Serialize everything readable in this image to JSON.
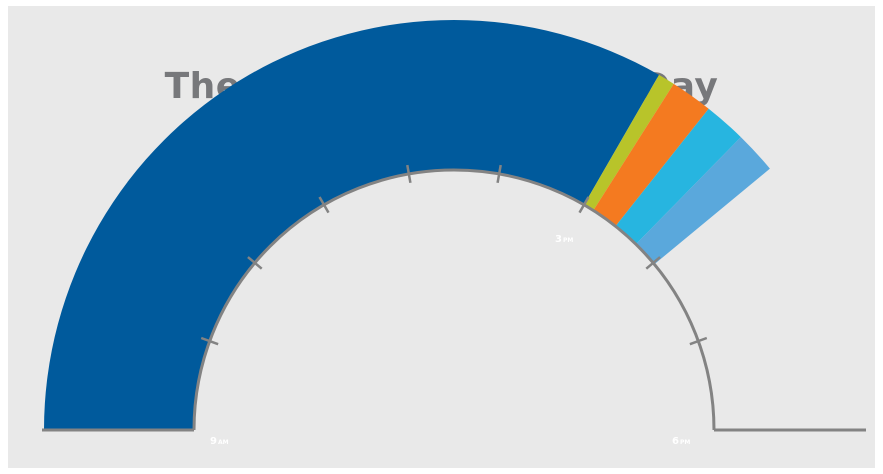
{
  "chart_data": {
    "type": "radial-bar",
    "title": "The Traditional School Day",
    "axis": {
      "start_hour": 9,
      "end_hour": 18,
      "tick_labels": [
        {
          "hour": 9,
          "number": "9",
          "suffix": "AM"
        },
        {
          "hour": 15,
          "number": "3",
          "suffix": "PM"
        },
        {
          "hour": 18,
          "number": "6",
          "suffix": "PM"
        }
      ]
    },
    "segments": [
      {
        "start": 9.0,
        "end": 15.0,
        "color": "#005a9c"
      },
      {
        "start": 15.0,
        "end": 15.12,
        "color": "#b8c42a"
      },
      {
        "start": 15.12,
        "end": 15.42,
        "color": "#f47a20"
      },
      {
        "start": 15.42,
        "end": 15.72,
        "color": "#27b5e0"
      },
      {
        "start": 15.72,
        "end": 16.02,
        "color": "#5aa8dc"
      }
    ]
  }
}
